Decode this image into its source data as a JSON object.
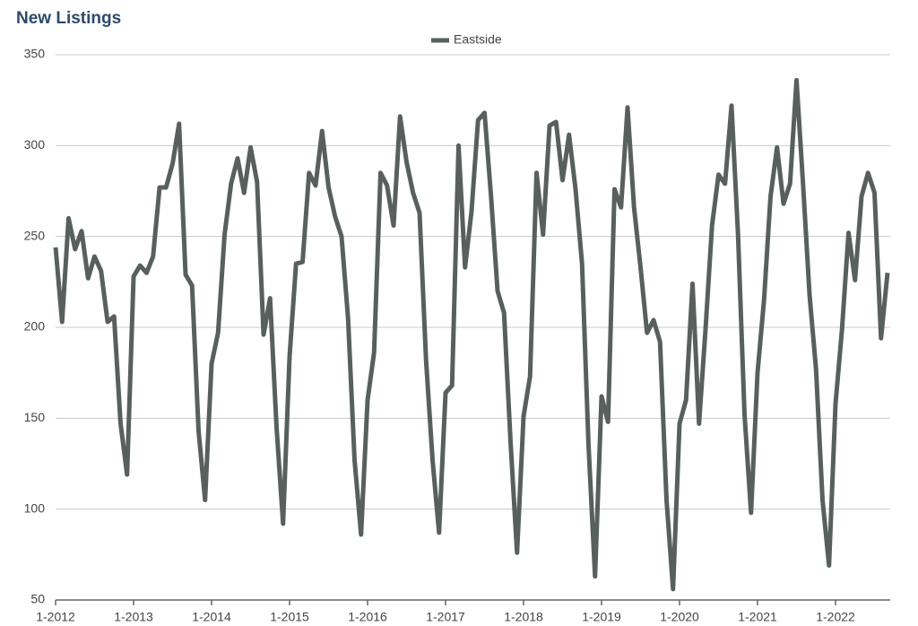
{
  "chart_data": {
    "type": "line",
    "title": "New Listings",
    "categories": [
      "1-2012",
      null,
      null,
      null,
      null,
      null,
      null,
      null,
      null,
      null,
      null,
      null,
      "1-2013",
      null,
      null,
      null,
      null,
      null,
      null,
      null,
      null,
      null,
      null,
      null,
      "1-2014",
      null,
      null,
      null,
      null,
      null,
      null,
      null,
      null,
      null,
      null,
      null,
      "1-2015",
      null,
      null,
      null,
      null,
      null,
      null,
      null,
      null,
      null,
      null,
      null,
      "1-2016",
      null,
      null,
      null,
      null,
      null,
      null,
      null,
      null,
      null,
      null,
      null,
      "1-2017",
      null,
      null,
      null,
      null,
      null,
      null,
      null,
      null,
      null,
      null,
      null,
      "1-2018",
      null,
      null,
      null,
      null,
      null,
      null,
      null,
      null,
      null,
      null,
      null,
      "1-2019",
      null,
      null,
      null,
      null,
      null,
      null,
      null,
      null,
      null,
      null,
      null,
      "1-2020",
      null,
      null,
      null,
      null,
      null,
      null,
      null,
      null,
      null,
      null,
      null,
      "1-2021",
      null,
      null,
      null,
      null,
      null,
      null,
      null,
      null,
      null,
      null,
      null,
      "1-2022",
      null,
      null,
      null,
      null,
      null,
      null,
      null,
      null
    ],
    "series": [
      {
        "name": "Eastside",
        "color": "#58605d",
        "values": [
          244,
          203,
          260,
          243,
          253,
          227,
          239,
          231,
          203,
          206,
          147,
          119,
          228,
          234,
          230,
          239,
          277,
          277,
          290,
          312,
          229,
          223,
          143,
          105,
          180,
          197,
          251,
          279,
          293,
          274,
          299,
          280,
          196,
          216,
          145,
          92,
          184,
          235,
          236,
          285,
          278,
          308,
          277,
          261,
          250,
          205,
          127,
          86,
          160,
          186,
          285,
          278,
          256,
          316,
          291,
          274,
          263,
          182,
          127,
          87,
          164,
          168,
          300,
          233,
          264,
          314,
          318,
          272,
          220,
          208,
          137,
          76,
          151,
          173,
          285,
          251,
          311,
          313,
          281,
          306,
          276,
          235,
          135,
          63,
          162,
          148,
          276,
          266,
          321,
          266,
          233,
          197,
          204,
          192,
          105,
          56,
          147,
          160,
          224,
          147,
          199,
          256,
          284,
          279,
          322,
          251,
          152,
          98,
          175,
          215,
          272,
          299,
          268,
          279,
          336,
          279,
          218,
          177,
          105,
          69,
          158,
          199,
          252,
          226,
          272,
          285,
          274,
          194,
          230
        ]
      }
    ],
    "ylim": [
      50,
      350
    ],
    "yticks": [
      50,
      100,
      150,
      200,
      250,
      300,
      350
    ],
    "grid": true,
    "legend": "top"
  }
}
